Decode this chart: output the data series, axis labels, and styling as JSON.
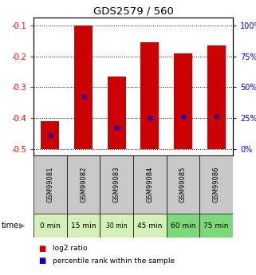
{
  "title": "GDS2579 / 560",
  "samples": [
    "GSM99081",
    "GSM99082",
    "GSM99083",
    "GSM99084",
    "GSM99085",
    "GSM99086"
  ],
  "time_labels": [
    "0 min",
    "15 min",
    "30 min",
    "45 min",
    "60 min",
    "75 min"
  ],
  "time_colors": [
    "#d4f0b8",
    "#d4f0b8",
    "#d4f0b8",
    "#d4f0b8",
    "#7ada7a",
    "#7ada7a"
  ],
  "log2_bottom": [
    -0.5,
    -0.5,
    -0.5,
    -0.5,
    -0.5,
    -0.5
  ],
  "log2_top": [
    -0.41,
    -0.1,
    -0.265,
    -0.155,
    -0.19,
    -0.165
  ],
  "percentile_values": [
    -0.455,
    -0.33,
    -0.43,
    -0.4,
    -0.395,
    -0.395
  ],
  "ylim": [
    -0.52,
    -0.075
  ],
  "yticks_left": [
    -0.5,
    -0.4,
    -0.3,
    -0.2,
    -0.1
  ],
  "yticks_right_pct": [
    0,
    25,
    50,
    75,
    100
  ],
  "bar_color": "#cc0000",
  "percentile_color": "#0000cc",
  "bar_width": 0.55,
  "sample_bg_color": "#c8c8c8",
  "legend_log2_label": "log2 ratio",
  "legend_pct_label": "percentile rank within the sample"
}
